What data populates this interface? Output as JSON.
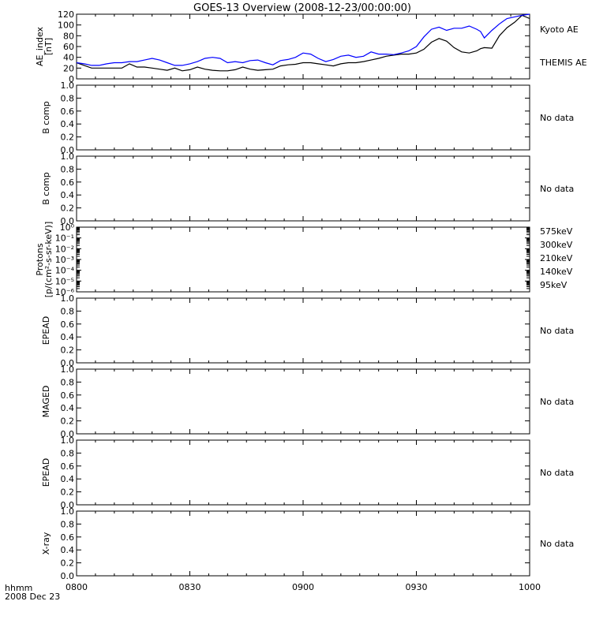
{
  "chart_data": {
    "title": "GOES-13 Overview (2008-12-23/00:00:00)",
    "corner_label": [
      "hhmm",
      "2008 Dec 23"
    ],
    "x_ticks": [
      "0800",
      "0830",
      "0900",
      "0930",
      "1000"
    ],
    "x_range_minutes": [
      0,
      120
    ],
    "no_data_text": "No data",
    "panels": [
      {
        "type": "line",
        "ylabel": [
          "AE_index",
          "[nT]"
        ],
        "ylim": [
          0,
          120
        ],
        "yticks": [
          "0",
          "20",
          "40",
          "60",
          "80",
          "100",
          "120"
        ],
        "series": [
          {
            "name": "Kyoto AE",
            "color": "#000000",
            "x": [
              0,
              2,
              4,
              6,
              8,
              10,
              12,
              14,
              16,
              18,
              20,
              22,
              24,
              26,
              28,
              30,
              32,
              34,
              36,
              38,
              40,
              42,
              44,
              46,
              48,
              50,
              52,
              54,
              56,
              58,
              60,
              62,
              64,
              66,
              68,
              70,
              72,
              74,
              76,
              78,
              80,
              82,
              84,
              86,
              88,
              90,
              92,
              94,
              96,
              98,
              100,
              102,
              104,
              106,
              107,
              108,
              110,
              112,
              114,
              116,
              118,
              120
            ],
            "y": [
              30,
              25,
              20,
              20,
              20,
              20,
              20,
              28,
              22,
              22,
              20,
              18,
              16,
              20,
              15,
              17,
              22,
              18,
              16,
              15,
              15,
              17,
              22,
              18,
              16,
              17,
              18,
              24,
              26,
              27,
              30,
              30,
              28,
              26,
              24,
              28,
              30,
              30,
              32,
              35,
              38,
              42,
              44,
              46,
              46,
              48,
              55,
              68,
              75,
              70,
              58,
              50,
              48,
              52,
              56,
              58,
              57,
              80,
              95,
              105,
              118,
              112
            ]
          },
          {
            "name": "THEMIS AE",
            "color": "#0000ff",
            "x": [
              0,
              2,
              4,
              6,
              8,
              10,
              12,
              14,
              16,
              18,
              20,
              22,
              24,
              26,
              28,
              30,
              32,
              34,
              36,
              38,
              40,
              42,
              44,
              46,
              48,
              50,
              52,
              54,
              56,
              58,
              60,
              62,
              64,
              66,
              68,
              70,
              72,
              74,
              76,
              78,
              80,
              82,
              84,
              86,
              88,
              90,
              92,
              94,
              96,
              98,
              100,
              102,
              104,
              106,
              107,
              108,
              110,
              112,
              114,
              116,
              118,
              120
            ],
            "y": [
              30,
              28,
              25,
              25,
              28,
              30,
              30,
              32,
              32,
              35,
              38,
              35,
              30,
              25,
              25,
              28,
              32,
              38,
              40,
              38,
              30,
              32,
              30,
              34,
              35,
              30,
              26,
              34,
              36,
              40,
              48,
              46,
              38,
              32,
              36,
              42,
              44,
              40,
              42,
              50,
              46,
              46,
              45,
              48,
              52,
              60,
              78,
              92,
              96,
              90,
              94,
              94,
              98,
              92,
              88,
              76,
              90,
              102,
              112,
              115,
              118,
              120
            ]
          }
        ]
      },
      {
        "type": "empty",
        "ylabel": [
          "B comp"
        ],
        "ylim": [
          0,
          1
        ],
        "yticks": [
          "0.0",
          "0.2",
          "0.4",
          "0.6",
          "0.8",
          "1.0"
        ]
      },
      {
        "type": "empty",
        "ylabel": [
          "B comp"
        ],
        "ylim": [
          0,
          1
        ],
        "yticks": [
          "0.0",
          "0.2",
          "0.4",
          "0.6",
          "0.8",
          "1.0"
        ]
      },
      {
        "type": "log",
        "ylabel": [
          "Protons",
          "[p/(cm²-s-sr-keV)]"
        ],
        "yticks": [
          "10⁻⁶",
          "10⁻⁵",
          "10⁻⁴",
          "10⁻³",
          "10⁻²",
          "10⁻¹",
          "10⁰"
        ],
        "ylim": [
          1e-06,
          1
        ],
        "legend": [
          {
            "name": "575keV",
            "color": "#8b1a1a"
          },
          {
            "name": "300keV",
            "color": "#e8a800"
          },
          {
            "name": "210keV",
            "color": "#00c800"
          },
          {
            "name": "140keV",
            "color": "#0000c8"
          },
          {
            "name": "95keV",
            "color": "#000000"
          }
        ]
      },
      {
        "type": "empty",
        "ylabel": [
          "EPEAD"
        ],
        "ylim": [
          0,
          1
        ],
        "yticks": [
          "0.0",
          "0.2",
          "0.4",
          "0.6",
          "0.8",
          "1.0"
        ]
      },
      {
        "type": "empty",
        "ylabel": [
          "MAGED"
        ],
        "ylim": [
          0,
          1
        ],
        "yticks": [
          "0.0",
          "0.2",
          "0.4",
          "0.6",
          "0.8",
          "1.0"
        ]
      },
      {
        "type": "empty",
        "ylabel": [
          "EPEAD"
        ],
        "ylim": [
          0,
          1
        ],
        "yticks": [
          "0.0",
          "0.2",
          "0.4",
          "0.6",
          "0.8",
          "1.0"
        ]
      },
      {
        "type": "empty",
        "ylabel": [
          "X-ray"
        ],
        "ylim": [
          0,
          1
        ],
        "yticks": [
          "0.0",
          "0.2",
          "0.4",
          "0.6",
          "0.8",
          "1.0"
        ]
      }
    ]
  }
}
